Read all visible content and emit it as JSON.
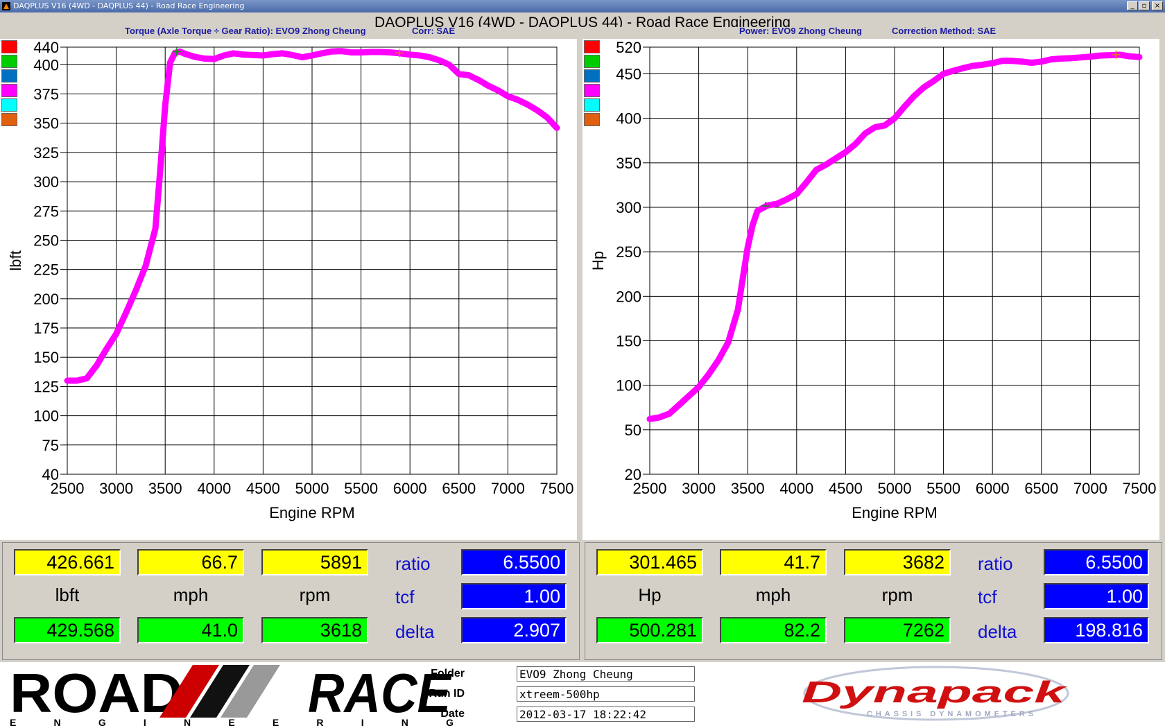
{
  "window": {
    "title": "DAQPLUS V16 (4WD - DAQPLUS 44) - Road Race Engineering",
    "controls": [
      "_",
      "▫",
      "×"
    ]
  },
  "header": {
    "title": "DAQPLUS V16 (4WD - DAQPLUS 44) - Road Race Engineering"
  },
  "left_panel": {
    "subtitle": "Torque (Axle Torque ÷ Gear Ratio): EVO9 Zhong Cheung",
    "correction": "Corr: SAE",
    "swatches": [
      "#ff0000",
      "#00cc00",
      "#0070c0",
      "#ff00ff",
      "#00ffff",
      "#e06010"
    ],
    "readout": {
      "row1": [
        "426.661",
        "66.7",
        "5891"
      ],
      "units": [
        "lbft",
        "mph",
        "rpm"
      ],
      "row2": [
        "429.568",
        "41.0",
        "3618"
      ],
      "labels": [
        "ratio",
        "tcf",
        "delta"
      ],
      "values": [
        "6.5500",
        "1.00",
        "2.907"
      ]
    }
  },
  "right_panel": {
    "subtitle": "Power: EVO9 Zhong Cheung",
    "correction": "Correction Method: SAE",
    "swatches": [
      "#ff0000",
      "#00cc00",
      "#0070c0",
      "#ff00ff",
      "#00ffff",
      "#e06010"
    ],
    "readout": {
      "row1": [
        "301.465",
        "41.7",
        "3682"
      ],
      "units": [
        "Hp",
        "mph",
        "rpm"
      ],
      "row2": [
        "500.281",
        "82.2",
        "7262"
      ],
      "labels": [
        "ratio",
        "tcf",
        "delta"
      ],
      "values": [
        "6.5500",
        "1.00",
        "198.816"
      ]
    }
  },
  "footer": {
    "logo_text": "ROAD RACE",
    "logo_sub": "ENGINEERING",
    "folder_label": "Folder",
    "folder": "EVO9 Zhong Cheung",
    "runid_label": "Run ID",
    "runid": "xtreem-500hp",
    "date_label": "Date",
    "date": "2012-03-17 18:22:42",
    "brand": "Dynapack",
    "brand_sub": "CHASSIS DYNAMOMETERS"
  },
  "chart_data": [
    {
      "type": "line",
      "xlabel": "Engine RPM",
      "ylabel": "lbft",
      "xlim": [
        2500,
        7500
      ],
      "ylim": [
        40,
        440
      ],
      "xticks": [
        2500,
        3000,
        3500,
        4000,
        4500,
        5000,
        5500,
        6000,
        6500,
        7000,
        7500
      ],
      "yticks": [
        40,
        75,
        100,
        125,
        150,
        175,
        200,
        225,
        250,
        275,
        300,
        325,
        350,
        375,
        400,
        440
      ],
      "grid": true,
      "color": "#ff00ff",
      "series": [
        {
          "x": [
            2500,
            2600,
            2700,
            2800,
            2900,
            3000,
            3100,
            3200,
            3300,
            3400,
            3450,
            3500,
            3550,
            3600,
            3650,
            3700,
            3800,
            3900,
            4000,
            4100,
            4200,
            4300,
            4400,
            4500,
            4600,
            4700,
            4800,
            4900,
            5000,
            5100,
            5200,
            5300,
            5400,
            5500,
            5600,
            5700,
            5800,
            5900,
            6000,
            6100,
            6200,
            6300,
            6400,
            6500,
            6600,
            6700,
            6800,
            6900,
            7000,
            7100,
            7200,
            7300,
            7400,
            7500
          ],
          "y": [
            130,
            130,
            132,
            143,
            157,
            170,
            188,
            207,
            228,
            260,
            310,
            365,
            405,
            427,
            430,
            425,
            418,
            414,
            413,
            421,
            426,
            423,
            422,
            421,
            424,
            426,
            422,
            417,
            421,
            426,
            430,
            431,
            428,
            428,
            429,
            429,
            428,
            426,
            423,
            421,
            417,
            410,
            400,
            392,
            391,
            387,
            382,
            378,
            373,
            370,
            366,
            361,
            355,
            346
          ]
        }
      ],
      "cursors": [
        {
          "x": 3618,
          "y": 429.568
        },
        {
          "x": 5891,
          "y": 426.661
        }
      ]
    },
    {
      "type": "line",
      "xlabel": "Engine RPM",
      "ylabel": "Hp",
      "xlim": [
        2500,
        7500
      ],
      "ylim": [
        20,
        520
      ],
      "xticks": [
        2500,
        3000,
        3500,
        4000,
        4500,
        5000,
        5500,
        6000,
        6500,
        7000,
        7500
      ],
      "yticks": [
        20,
        50,
        100,
        150,
        200,
        250,
        300,
        350,
        400,
        450,
        520
      ],
      "grid": true,
      "color": "#ff00ff",
      "series": [
        {
          "x": [
            2500,
            2600,
            2700,
            2800,
            2900,
            3000,
            3100,
            3200,
            3300,
            3400,
            3450,
            3500,
            3550,
            3600,
            3700,
            3800,
            3900,
            4000,
            4100,
            4200,
            4300,
            4400,
            4500,
            4600,
            4700,
            4800,
            4900,
            5000,
            5100,
            5200,
            5300,
            5400,
            5500,
            5600,
            5700,
            5800,
            5900,
            6000,
            6100,
            6200,
            6300,
            6400,
            6500,
            6600,
            6700,
            6800,
            6900,
            7000,
            7100,
            7200,
            7300,
            7400,
            7500
          ],
          "y": [
            62,
            64,
            68,
            78,
            88,
            98,
            112,
            128,
            148,
            185,
            220,
            255,
            280,
            296,
            302,
            304,
            309,
            315,
            328,
            342,
            348,
            355,
            362,
            371,
            383,
            390,
            392,
            400,
            413,
            425,
            435,
            442,
            450,
            458,
            465,
            471,
            474,
            478,
            484,
            484,
            482,
            479,
            482,
            488,
            490,
            491,
            493,
            495,
            498,
            499,
            500,
            496,
            494
          ]
        }
      ],
      "cursors": [
        {
          "x": 3682,
          "y": 301.465
        },
        {
          "x": 7262,
          "y": 500.281
        }
      ]
    }
  ]
}
